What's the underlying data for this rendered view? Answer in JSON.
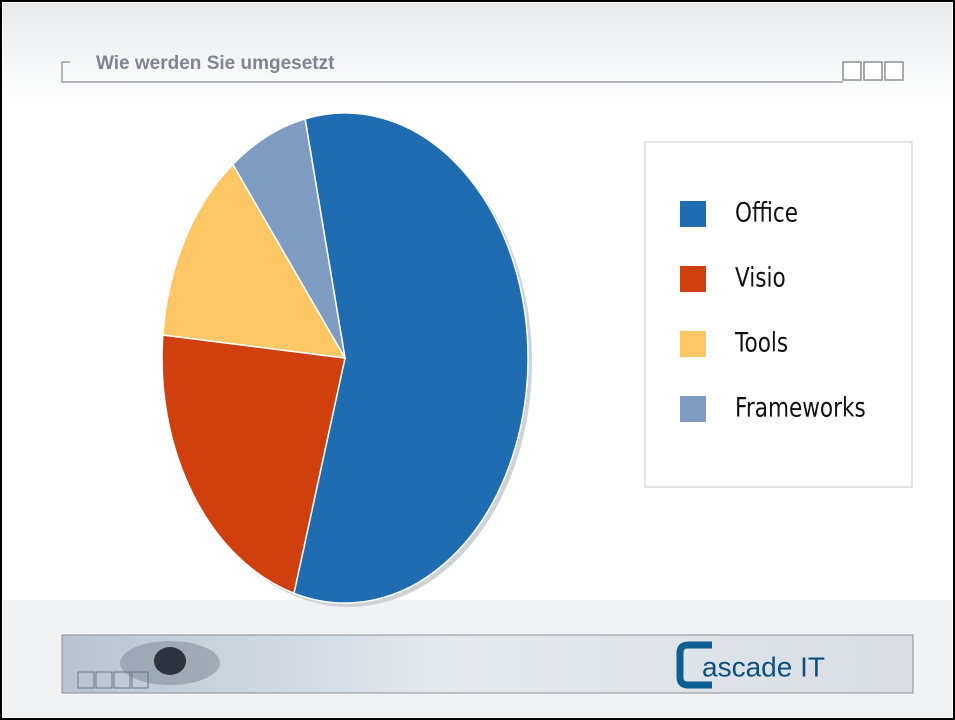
{
  "header": {
    "title": "Wie werden Sie umgesetzt"
  },
  "chart_data": {
    "type": "pie",
    "categories": [
      "Office",
      "Visio",
      "Tools",
      "Frameworks"
    ],
    "values": [
      58,
      22,
      13,
      7
    ],
    "colors": [
      "#1f6db0",
      "#d0400f",
      "#fcc764",
      "#7e9bc2"
    ],
    "legend": "right"
  },
  "footer": {
    "logo": "ascade IT"
  }
}
